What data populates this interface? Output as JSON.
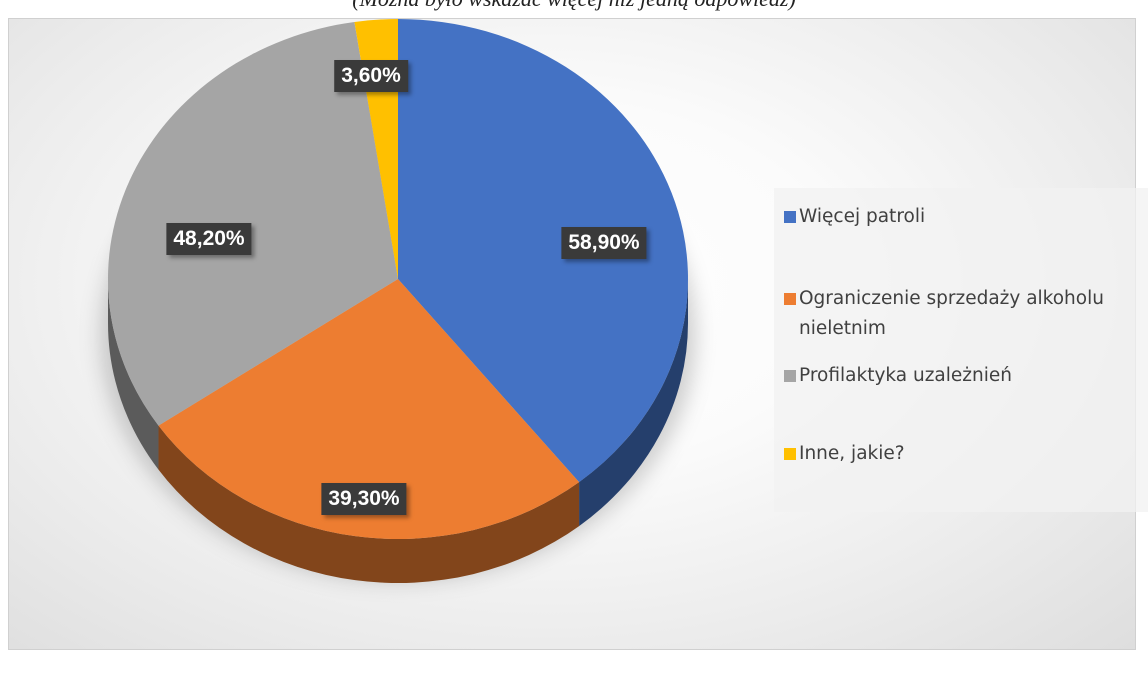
{
  "caption": "(Można było wskazać więcej niż jedną odpowiedź)",
  "chart_data": {
    "type": "pie",
    "title": "",
    "categories": [
      "Więcej patroli",
      "Ograniczenie sprzedaży alkoholu nieletnim",
      "Profilaktyka uzależnień",
      "Inne, jakie?"
    ],
    "values": [
      58.9,
      39.3,
      48.2,
      3.6
    ],
    "value_labels": [
      "58,90%",
      "39,30%",
      "48,20%",
      "3,60%"
    ],
    "colors": [
      "#4472C4",
      "#ED7D31",
      "#A5A5A5",
      "#FFC000"
    ],
    "legend_position": "right",
    "style": "3d"
  }
}
